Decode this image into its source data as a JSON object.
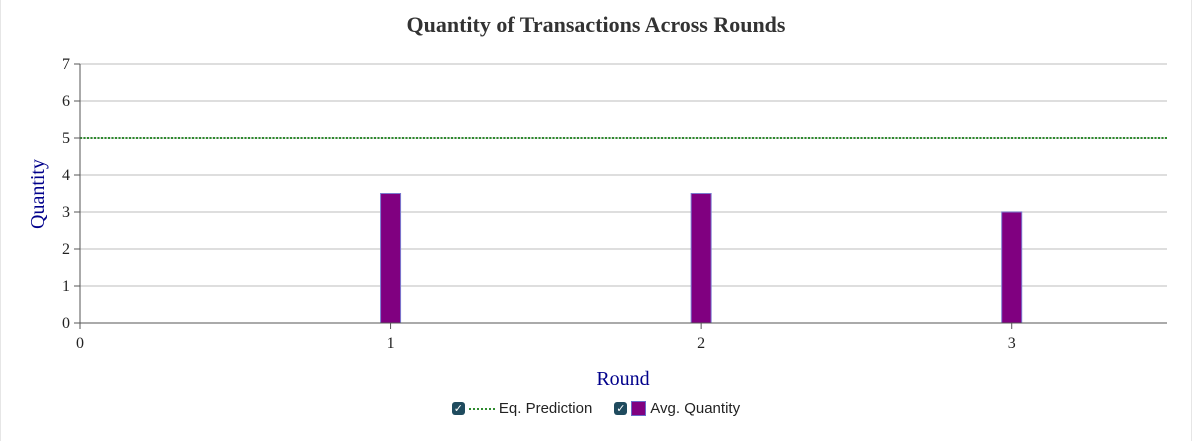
{
  "chart_data": {
    "type": "bar",
    "title": "Quantity of Transactions Across Rounds",
    "xlabel": "Round",
    "ylabel": "Quantity",
    "xlim": [
      0,
      3.5
    ],
    "ylim": [
      0,
      7
    ],
    "x_ticks": [
      "0",
      "1",
      "2",
      "3"
    ],
    "y_ticks": [
      "0",
      "1",
      "2",
      "3",
      "4",
      "5",
      "6",
      "7"
    ],
    "grid": true,
    "legend_position": "bottom-center",
    "series": [
      {
        "name": "Avg. Quantity",
        "kind": "bar",
        "color": "#800080",
        "x": [
          1,
          2,
          3
        ],
        "values": [
          3.5,
          3.5,
          3
        ]
      },
      {
        "name": "Eq. Prediction",
        "kind": "line",
        "style": "dotted",
        "color": "#2e8b2e",
        "value": 5
      }
    ]
  },
  "legend": {
    "items": [
      {
        "label": "Eq. Prediction",
        "checked": true,
        "check_mark": "✓"
      },
      {
        "label": "Avg. Quantity",
        "checked": true,
        "check_mark": "✓"
      }
    ]
  },
  "colors": {
    "title": "#333333",
    "axis_label": "#00008b",
    "grid": "#d3d3d3",
    "axis": "#555555"
  }
}
